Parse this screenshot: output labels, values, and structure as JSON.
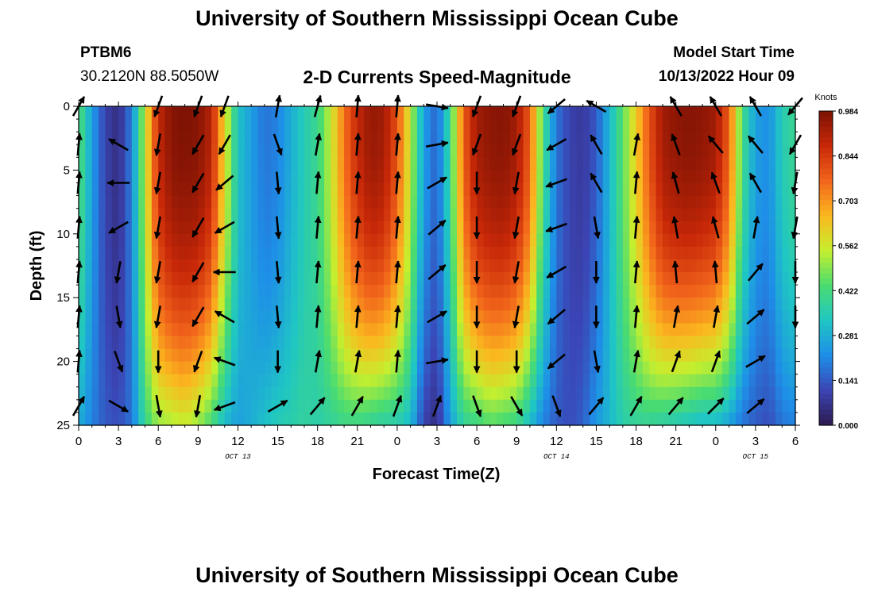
{
  "page_title": "University of Southern Mississippi Ocean Cube",
  "footer_title": "University of Southern Mississippi Ocean Cube",
  "station": {
    "id": "PTBM6",
    "coords": "30.2120N  88.5050W"
  },
  "plot_title": "2-D Currents Speed-Magnitude",
  "model": {
    "label": "Model Start Time",
    "value": "10/13/2022 Hour 09"
  },
  "chart_data": {
    "type": "heatmap",
    "title": "2-D Currents Speed-Magnitude",
    "xlabel": "Forecast Time(Z)",
    "ylabel": "Depth (ft)",
    "x_tick_labels": [
      "0",
      "3",
      "6",
      "9",
      "12",
      "15",
      "18",
      "21",
      "0",
      "3",
      "6",
      "9",
      "12",
      "15",
      "18",
      "21",
      "0",
      "3",
      "6"
    ],
    "x_range_hours": [
      0,
      54
    ],
    "date_labels": [
      {
        "label": "OCT 13",
        "hour": 12
      },
      {
        "label": "OCT 14",
        "hour": 36
      },
      {
        "label": "OCT 15",
        "hour": 51
      }
    ],
    "y_ticks": [
      0,
      5,
      10,
      15,
      20,
      25
    ],
    "ylim": [
      25,
      0
    ],
    "colorbar": {
      "unit": "Knots",
      "min": 0.0,
      "max": 0.984,
      "tick_labels": [
        "0.984",
        "0.844",
        "0.703",
        "0.562",
        "0.422",
        "0.281",
        "0.141",
        "0.000"
      ],
      "colors": [
        "#2d1a4e",
        "#3b45b5",
        "#1e8ee8",
        "#1fc6c4",
        "#4adc70",
        "#c5ef2e",
        "#fbb81f",
        "#f2651b",
        "#c82808",
        "#7c1204"
      ]
    },
    "speed_profile_surface": {
      "hours": [
        0,
        1,
        2,
        3,
        4,
        5,
        6,
        7,
        8,
        9,
        10,
        11,
        12,
        13,
        14,
        15,
        16,
        17,
        18,
        19,
        20,
        21,
        22,
        23,
        24,
        25,
        26,
        27,
        28,
        29,
        30,
        31,
        32,
        33,
        34,
        35,
        36,
        37,
        38,
        39,
        40,
        41,
        42,
        43,
        44,
        45,
        46,
        47,
        48,
        49,
        50,
        51,
        52,
        53,
        54
      ],
      "speed_kn": [
        0.45,
        0.25,
        0.1,
        0.05,
        0.2,
        0.55,
        0.88,
        0.97,
        0.98,
        0.97,
        0.9,
        0.6,
        0.32,
        0.25,
        0.18,
        0.2,
        0.28,
        0.35,
        0.4,
        0.55,
        0.75,
        0.88,
        0.95,
        0.93,
        0.8,
        0.55,
        0.25,
        0.15,
        0.4,
        0.78,
        0.93,
        0.96,
        0.97,
        0.93,
        0.78,
        0.42,
        0.18,
        0.1,
        0.08,
        0.14,
        0.3,
        0.45,
        0.62,
        0.8,
        0.93,
        0.96,
        0.97,
        0.96,
        0.93,
        0.78,
        0.42,
        0.25,
        0.22,
        0.35,
        0.4
      ]
    },
    "speed_profile_bottom": {
      "hours": [
        0,
        1,
        2,
        3,
        4,
        5,
        6,
        7,
        8,
        9,
        10,
        11,
        12,
        13,
        14,
        15,
        16,
        17,
        18,
        19,
        20,
        21,
        22,
        23,
        24,
        25,
        26,
        27,
        28,
        29,
        30,
        31,
        32,
        33,
        34,
        35,
        36,
        37,
        38,
        39,
        40,
        41,
        42,
        43,
        44,
        45,
        46,
        47,
        48,
        49,
        50,
        51,
        52,
        53,
        54
      ],
      "speed_kn": [
        0.28,
        0.2,
        0.14,
        0.12,
        0.18,
        0.4,
        0.5,
        0.52,
        0.55,
        0.5,
        0.42,
        0.3,
        0.25,
        0.28,
        0.32,
        0.35,
        0.36,
        0.38,
        0.36,
        0.38,
        0.4,
        0.4,
        0.38,
        0.36,
        0.35,
        0.3,
        0.1,
        0.05,
        0.25,
        0.38,
        0.4,
        0.44,
        0.42,
        0.4,
        0.3,
        0.2,
        0.14,
        0.12,
        0.15,
        0.24,
        0.3,
        0.36,
        0.38,
        0.38,
        0.36,
        0.34,
        0.32,
        0.3,
        0.3,
        0.25,
        0.18,
        0.14,
        0.12,
        0.18,
        0.2
      ]
    },
    "vectors": {
      "depths_ft": [
        0,
        3,
        6,
        9.5,
        13,
        16.5,
        20,
        23.5
      ],
      "columns": [
        {
          "hour": 0,
          "dirs_deg": [
            30,
            5,
            5,
            5,
            5,
            5,
            5,
            30
          ]
        },
        {
          "hour": 3,
          "dirs_deg": [
            null,
            300,
            270,
            240,
            190,
            170,
            160,
            120
          ]
        },
        {
          "hour": 6,
          "dirs_deg": [
            200,
            190,
            190,
            190,
            190,
            190,
            180,
            170
          ]
        },
        {
          "hour": 9,
          "dirs_deg": [
            200,
            210,
            210,
            210,
            210,
            210,
            200,
            190
          ]
        },
        {
          "hour": 11,
          "dirs_deg": [
            200,
            210,
            230,
            240,
            270,
            300,
            290,
            250
          ]
        },
        {
          "hour": 15,
          "dirs_deg": [
            10,
            160,
            175,
            175,
            175,
            175,
            180,
            60
          ]
        },
        {
          "hour": 18,
          "dirs_deg": [
            15,
            10,
            5,
            5,
            5,
            5,
            10,
            40
          ]
        },
        {
          "hour": 21,
          "dirs_deg": [
            5,
            5,
            5,
            5,
            5,
            5,
            10,
            30
          ]
        },
        {
          "hour": 24,
          "dirs_deg": [
            5,
            5,
            5,
            5,
            5,
            5,
            5,
            20
          ]
        },
        {
          "hour": 27,
          "dirs_deg": [
            100,
            80,
            60,
            50,
            50,
            60,
            80,
            20
          ]
        },
        {
          "hour": 30,
          "dirs_deg": [
            200,
            200,
            180,
            180,
            180,
            180,
            180,
            160
          ]
        },
        {
          "hour": 33,
          "dirs_deg": [
            200,
            200,
            190,
            190,
            190,
            190,
            180,
            150
          ]
        },
        {
          "hour": 36,
          "dirs_deg": [
            230,
            240,
            250,
            250,
            240,
            230,
            230,
            160
          ]
        },
        {
          "hour": 39,
          "dirs_deg": [
            300,
            330,
            330,
            170,
            180,
            180,
            170,
            40
          ]
        },
        {
          "hour": 42,
          "dirs_deg": [
            null,
            10,
            5,
            5,
            5,
            5,
            10,
            30
          ]
        },
        {
          "hour": 45,
          "dirs_deg": [
            330,
            340,
            345,
            350,
            355,
            10,
            20,
            40
          ]
        },
        {
          "hour": 48,
          "dirs_deg": [
            330,
            320,
            340,
            345,
            355,
            10,
            20,
            45
          ]
        },
        {
          "hour": 51,
          "dirs_deg": [
            330,
            320,
            330,
            10,
            40,
            50,
            60,
            50
          ]
        },
        {
          "hour": 54,
          "dirs_deg": [
            220,
            210,
            190,
            190,
            180,
            180,
            null,
            null
          ]
        }
      ]
    }
  }
}
